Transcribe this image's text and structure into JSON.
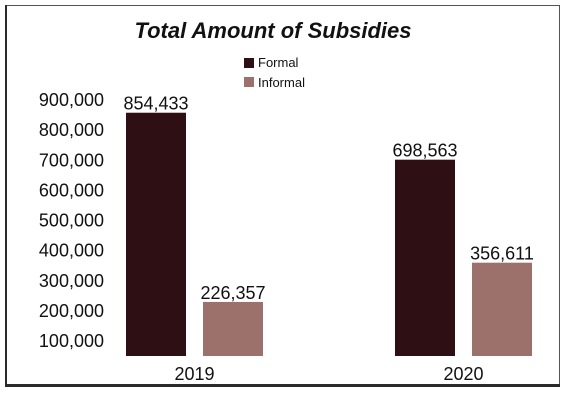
{
  "colors": {
    "formal": "#2e0f13",
    "informal": "#9c706b",
    "text": "#111111",
    "frame": "#555555"
  },
  "chart_data": {
    "type": "bar",
    "title": "Total Amount of Subsidies",
    "categories": [
      "2019",
      "2020"
    ],
    "series": [
      {
        "name": "Formal",
        "values": [
          854433,
          698563
        ],
        "labels": [
          "854,433",
          "698,563"
        ]
      },
      {
        "name": "Informal",
        "values": [
          226357,
          356611
        ],
        "labels": [
          "226,357",
          "356,611"
        ]
      }
    ],
    "y_ticks": [
      {
        "value": 100000,
        "label": "100,000"
      },
      {
        "value": 200000,
        "label": "200,000"
      },
      {
        "value": 300000,
        "label": "300,000"
      },
      {
        "value": 400000,
        "label": "400,000"
      },
      {
        "value": 500000,
        "label": "500,000"
      },
      {
        "value": 600000,
        "label": "600,000"
      },
      {
        "value": 700000,
        "label": "700,000"
      },
      {
        "value": 800000,
        "label": "800,000"
      },
      {
        "value": 900000,
        "label": "900,000"
      }
    ],
    "ylim": [
      0,
      900000
    ],
    "grid": false,
    "legend_position": "top-center"
  }
}
